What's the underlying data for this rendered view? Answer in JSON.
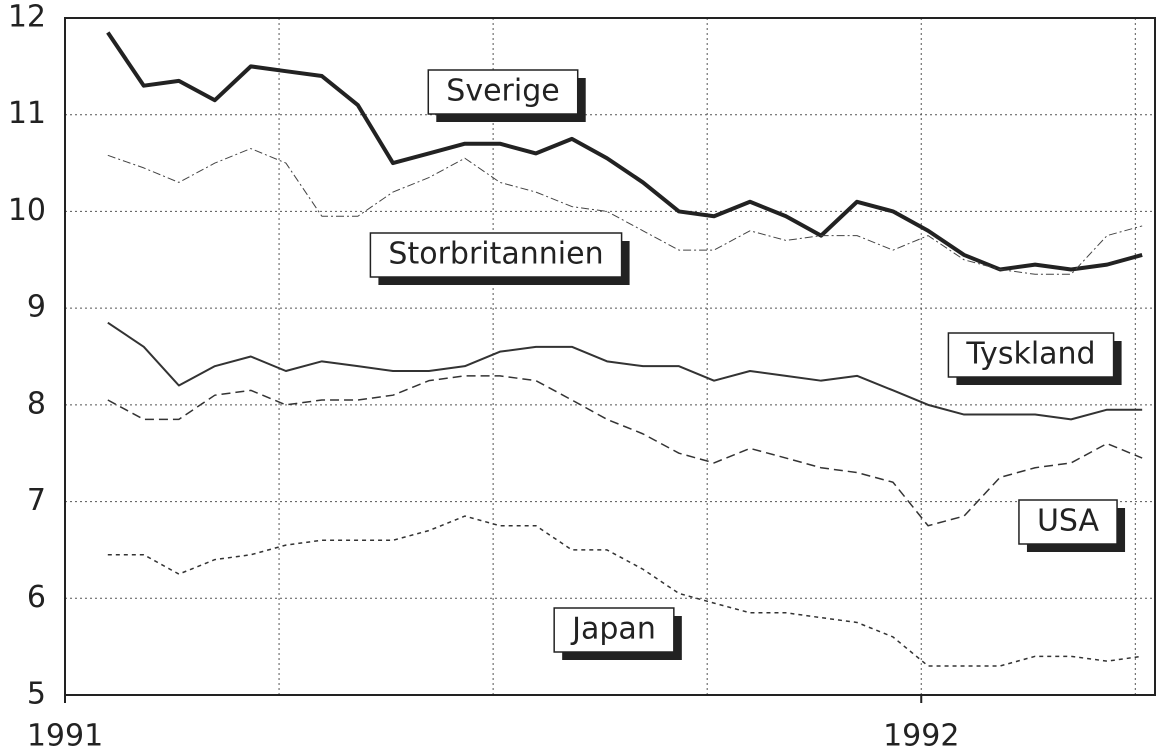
{
  "chart_data": {
    "type": "line",
    "x": [
      1991.05,
      1991.092,
      1991.133,
      1991.175,
      1991.217,
      1991.258,
      1991.3,
      1991.342,
      1991.383,
      1991.425,
      1991.467,
      1991.508,
      1991.55,
      1991.592,
      1991.633,
      1991.675,
      1991.717,
      1991.758,
      1991.8,
      1991.842,
      1991.883,
      1991.925,
      1991.967,
      1992.008,
      1992.05,
      1992.092,
      1992.133,
      1992.175,
      1992.217,
      1992.258
    ],
    "series": [
      {
        "name": "Sverige",
        "color": "#222",
        "line_width": 4,
        "line_style": "solid",
        "values": [
          11.85,
          11.3,
          11.35,
          11.15,
          11.5,
          11.45,
          11.4,
          11.1,
          10.5,
          10.6,
          10.7,
          10.7,
          10.6,
          10.75,
          10.55,
          10.3,
          10.0,
          9.95,
          10.1,
          9.95,
          9.75,
          10.1,
          10.0,
          9.8,
          9.55,
          9.4,
          9.45,
          9.4,
          9.45,
          9.55
        ]
      },
      {
        "name": "Storbritannien",
        "color": "#444",
        "line_width": 1,
        "line_style": "dashdot",
        "values": [
          10.58,
          10.45,
          10.3,
          10.5,
          10.65,
          10.5,
          9.95,
          9.95,
          10.2,
          10.35,
          10.55,
          10.3,
          10.2,
          10.05,
          10.0,
          9.8,
          9.6,
          9.6,
          9.8,
          9.7,
          9.75,
          9.75,
          9.6,
          9.75,
          9.5,
          9.4,
          9.35,
          9.35,
          9.75,
          9.85
        ]
      },
      {
        "name": "Tyskland",
        "color": "#333",
        "line_width": 2,
        "line_style": "solid",
        "values": [
          8.85,
          8.6,
          8.2,
          8.4,
          8.5,
          8.35,
          8.45,
          8.4,
          8.35,
          8.35,
          8.4,
          8.55,
          8.6,
          8.6,
          8.45,
          8.4,
          8.4,
          8.25,
          8.35,
          8.3,
          8.25,
          8.3,
          8.15,
          8.0,
          7.9,
          7.9,
          7.9,
          7.85,
          7.95,
          7.95
        ]
      },
      {
        "name": "USA",
        "color": "#333",
        "line_width": 1.5,
        "line_style": "dashed",
        "values": [
          8.05,
          7.85,
          7.85,
          8.1,
          8.15,
          8.0,
          8.05,
          8.05,
          8.1,
          8.25,
          8.3,
          8.3,
          8.25,
          8.05,
          7.85,
          7.7,
          7.5,
          7.4,
          7.55,
          7.45,
          7.35,
          7.3,
          7.2,
          6.75,
          6.85,
          7.25,
          7.35,
          7.4,
          7.6,
          7.45
        ]
      },
      {
        "name": "Japan",
        "color": "#333",
        "line_width": 1.5,
        "line_style": "dotted",
        "values": [
          6.45,
          6.45,
          6.25,
          6.4,
          6.45,
          6.55,
          6.6,
          6.6,
          6.6,
          6.7,
          6.85,
          6.75,
          6.75,
          6.5,
          6.5,
          6.3,
          6.05,
          5.95,
          5.85,
          5.85,
          5.8,
          5.75,
          5.6,
          5.3,
          5.3,
          5.3,
          5.4,
          5.4,
          5.35,
          5.4
        ]
      }
    ],
    "xlim": [
      1991,
      1992.273
    ],
    "xticks": [
      1991,
      1992
    ],
    "xgrid": [
      1991.25,
      1991.5,
      1991.75,
      1992,
      1992.25
    ],
    "ylim": [
      5,
      12
    ],
    "yticks": [
      5,
      6,
      7,
      8,
      9,
      10,
      11,
      12
    ],
    "grid": true
  }
}
